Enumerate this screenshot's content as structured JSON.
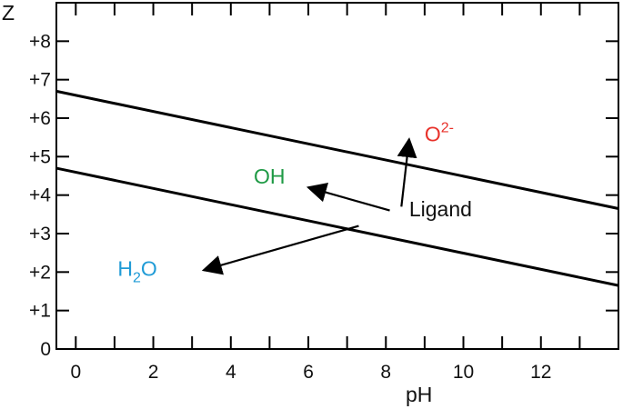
{
  "chart_data": {
    "type": "line",
    "title": "",
    "xlabel": "pH",
    "ylabel": "Z",
    "xlim": [
      -0.5,
      14.0
    ],
    "ylim": [
      0,
      9
    ],
    "x_ticks": [
      {
        "value": 0,
        "label": "0"
      },
      {
        "value": 2,
        "label": "2"
      },
      {
        "value": 4,
        "label": "4"
      },
      {
        "value": 6,
        "label": "6"
      },
      {
        "value": 8,
        "label": "8"
      },
      {
        "value": 10,
        "label": "10"
      },
      {
        "value": 12,
        "label": "12"
      }
    ],
    "x_minor_ticks": [
      1,
      3,
      5,
      7,
      9,
      11,
      13
    ],
    "y_ticks": [
      {
        "value": 0,
        "label": "0"
      },
      {
        "value": 1,
        "label": "+1"
      },
      {
        "value": 2,
        "label": "+2"
      },
      {
        "value": 3,
        "label": "+3"
      },
      {
        "value": 4,
        "label": "+4"
      },
      {
        "value": 5,
        "label": "+5"
      },
      {
        "value": 6,
        "label": "+6"
      },
      {
        "value": 7,
        "label": "+7"
      },
      {
        "value": 8,
        "label": "+8"
      }
    ],
    "series": [
      {
        "x": [
          -0.5,
          14.0
        ],
        "y": [
          6.7,
          3.65
        ]
      },
      {
        "x": [
          -0.5,
          14.0
        ],
        "y": [
          4.7,
          1.65
        ]
      }
    ],
    "annotations": {
      "ligand": {
        "text": "Ligand",
        "color": "#111111",
        "x": 8.6,
        "y": 3.45
      },
      "o2": {
        "text": "O",
        "sup": "2-",
        "color": "#e8312a",
        "x": 9.0,
        "y": 5.4
      },
      "oh": {
        "text": "OH",
        "color": "#1f9a45",
        "x": 5.4,
        "y": 4.3
      },
      "h2o": {
        "text": "H",
        "sub": "2",
        "tail": "O",
        "color": "#1f9bd6",
        "x": 2.1,
        "y": 1.9
      }
    },
    "arrows": [
      {
        "name": "arrow-to-o2",
        "from": [
          8.4,
          3.7
        ],
        "to": [
          8.6,
          5.45
        ]
      },
      {
        "name": "arrow-to-oh",
        "from": [
          8.1,
          3.6
        ],
        "to": [
          6.0,
          4.2
        ]
      },
      {
        "name": "arrow-to-h2o",
        "from": [
          7.3,
          3.2
        ],
        "to": [
          3.3,
          2.05
        ]
      }
    ],
    "grid": false,
    "legend": "none"
  }
}
